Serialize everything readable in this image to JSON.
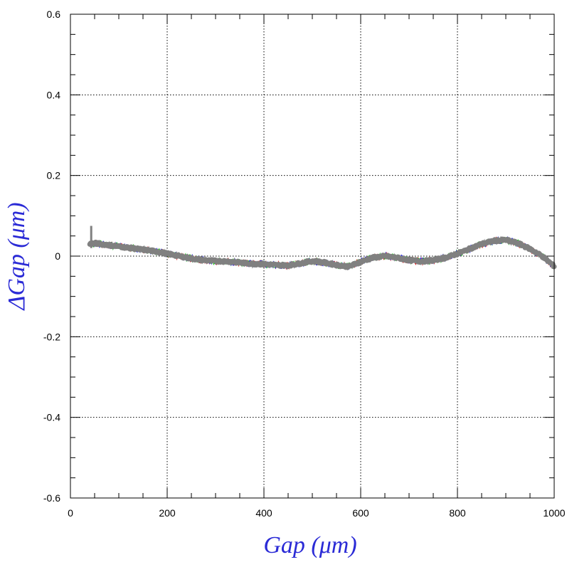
{
  "chart_data": {
    "type": "line",
    "title": "",
    "xlabel": "Gap  (μm)",
    "ylabel": "ΔGap  (μm)",
    "xlim": [
      0,
      1000
    ],
    "ylim": [
      -0.6,
      0.6
    ],
    "x_ticks": [
      "0",
      "200",
      "400",
      "600",
      "800",
      "1000"
    ],
    "y_ticks": [
      "-0.6",
      "-0.4",
      "-0.2",
      "0",
      "0.2",
      "0.4",
      "0.6"
    ],
    "grid": true,
    "colors": {
      "axis_title": "#2b2bd6",
      "grid": "#000000",
      "series_main": "#808080",
      "series_red": "#d62020",
      "series_green": "#20c020",
      "series_blue": "#2020d6"
    },
    "series": [
      {
        "color": "#808080",
        "x": [
          40,
          50,
          75,
          100,
          125,
          150,
          175,
          200,
          225,
          250,
          275,
          300,
          325,
          350,
          375,
          400,
          425,
          450,
          475,
          500,
          525,
          550,
          575,
          600,
          625,
          650,
          675,
          700,
          725,
          750,
          775,
          800,
          825,
          850,
          875,
          900,
          925,
          950,
          975,
          1000
        ],
        "y": [
          0.03,
          0.032,
          0.028,
          0.024,
          0.02,
          0.016,
          0.012,
          0.006,
          0.0,
          -0.006,
          -0.01,
          -0.012,
          -0.013,
          -0.016,
          -0.019,
          -0.02,
          -0.022,
          -0.023,
          -0.018,
          -0.012,
          -0.016,
          -0.022,
          -0.026,
          -0.014,
          -0.004,
          0.0,
          -0.004,
          -0.01,
          -0.013,
          -0.01,
          -0.004,
          0.006,
          0.018,
          0.03,
          0.038,
          0.04,
          0.032,
          0.018,
          0.0,
          -0.025
        ]
      }
    ]
  }
}
